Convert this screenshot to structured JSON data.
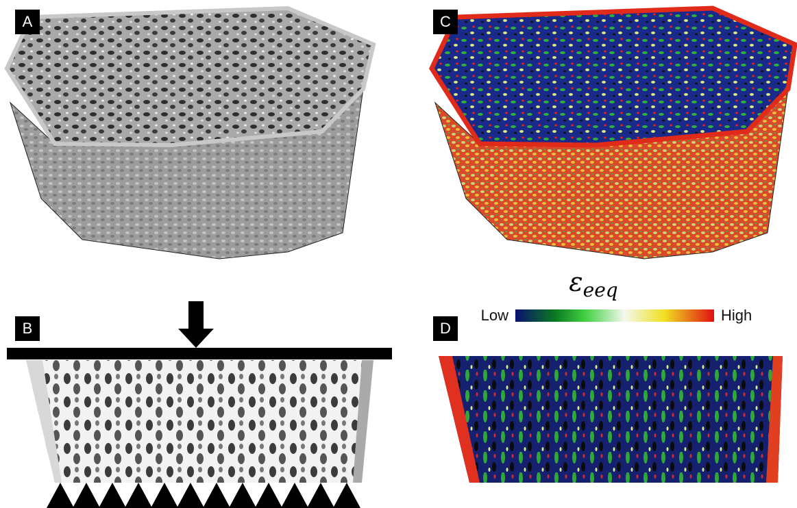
{
  "panels": [
    {
      "label": "A"
    },
    {
      "label": "B"
    },
    {
      "label": "C"
    },
    {
      "label": "D"
    }
  ],
  "colorbar": {
    "symbol": "ε",
    "subscript": "eeq",
    "low": "Low",
    "high": "High"
  }
}
